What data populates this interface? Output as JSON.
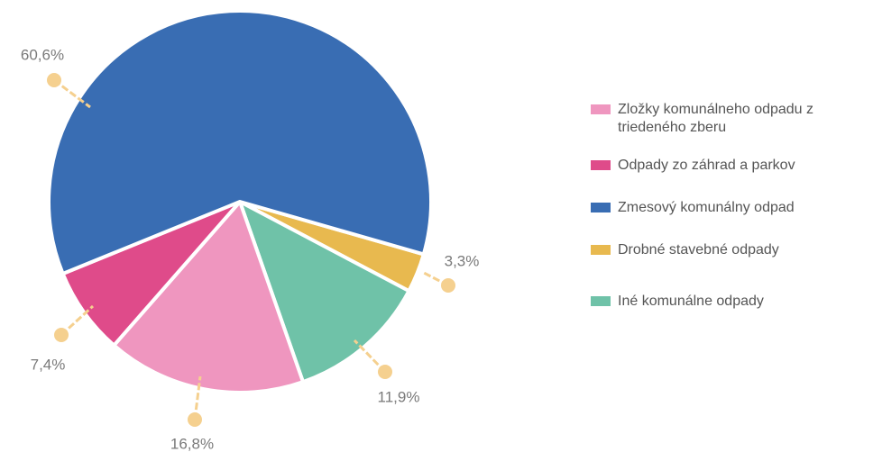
{
  "chart_data": {
    "type": "pie",
    "categories": [
      "Zložky komunálneho odpadu z triedeného zberu",
      "Odpady zo záhrad a parkov",
      "Zmesový komunálny odpad",
      "Drobné stavebné odpady",
      "Iné komunálne odpady"
    ],
    "values": [
      16.8,
      7.4,
      60.6,
      3.3,
      11.9
    ],
    "value_labels": [
      "16,8%",
      "7,4%",
      "60,6%",
      "3,3%",
      "11,9%"
    ],
    "colors": [
      "#ef96bf",
      "#df4b8a",
      "#396db3",
      "#e8b94f",
      "#6fc2a8"
    ],
    "legend": "right"
  }
}
